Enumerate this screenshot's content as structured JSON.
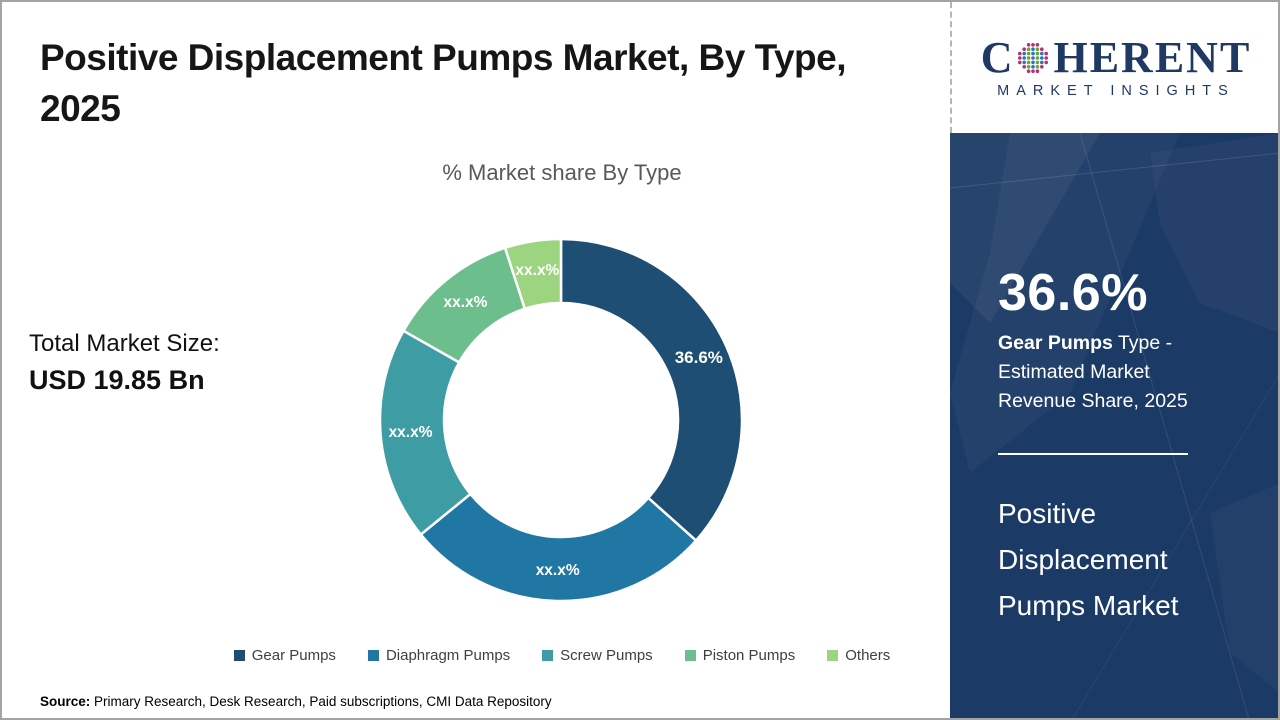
{
  "header": {
    "title_line1": "Positive Displacement Pumps Market, By Type,",
    "title_line2": "2025"
  },
  "total_market": {
    "label": "Total Market Size:",
    "value": "USD 19.85 Bn"
  },
  "chart_data": {
    "type": "pie",
    "subtype": "donut",
    "title": "% Market share By Type",
    "legend_position": "bottom",
    "start_angle_deg": 0,
    "direction": "clockwise",
    "segments": [
      {
        "label": "Gear Pumps",
        "display_value": "36.6%",
        "value_pct_estimated": 36.6,
        "color": "#1F4E74"
      },
      {
        "label": "Diaphragm Pumps",
        "display_value": "xx.x%",
        "value_pct_estimated": 27.5,
        "color": "#2177A3"
      },
      {
        "label": "Screw Pumps",
        "display_value": "xx.x%",
        "value_pct_estimated": 19.1,
        "color": "#3D9CA4"
      },
      {
        "label": "Piston Pumps",
        "display_value": "xx.x%",
        "value_pct_estimated": 11.8,
        "color": "#6DBE8D"
      },
      {
        "label": "Others",
        "display_value": "xx.x%",
        "value_pct_estimated": 5.0,
        "color": "#9DD480"
      }
    ]
  },
  "logo": {
    "word_start": "C",
    "word_end": "HERENT",
    "tagline": "MARKET INSIGHTS",
    "brand_color": "#1F3864"
  },
  "sidebar": {
    "background_color": "#1C3A66",
    "stat_value": "36.6%",
    "stat_desc_bold": "Gear Pumps",
    "stat_desc_rest": " Type - Estimated Market Revenue Share, 2025",
    "panel_title": "Positive Displacement Pumps Market"
  },
  "source": {
    "label": "Source:",
    "text": " Primary Research, Desk Research, Paid subscriptions, CMI Data Repository"
  }
}
